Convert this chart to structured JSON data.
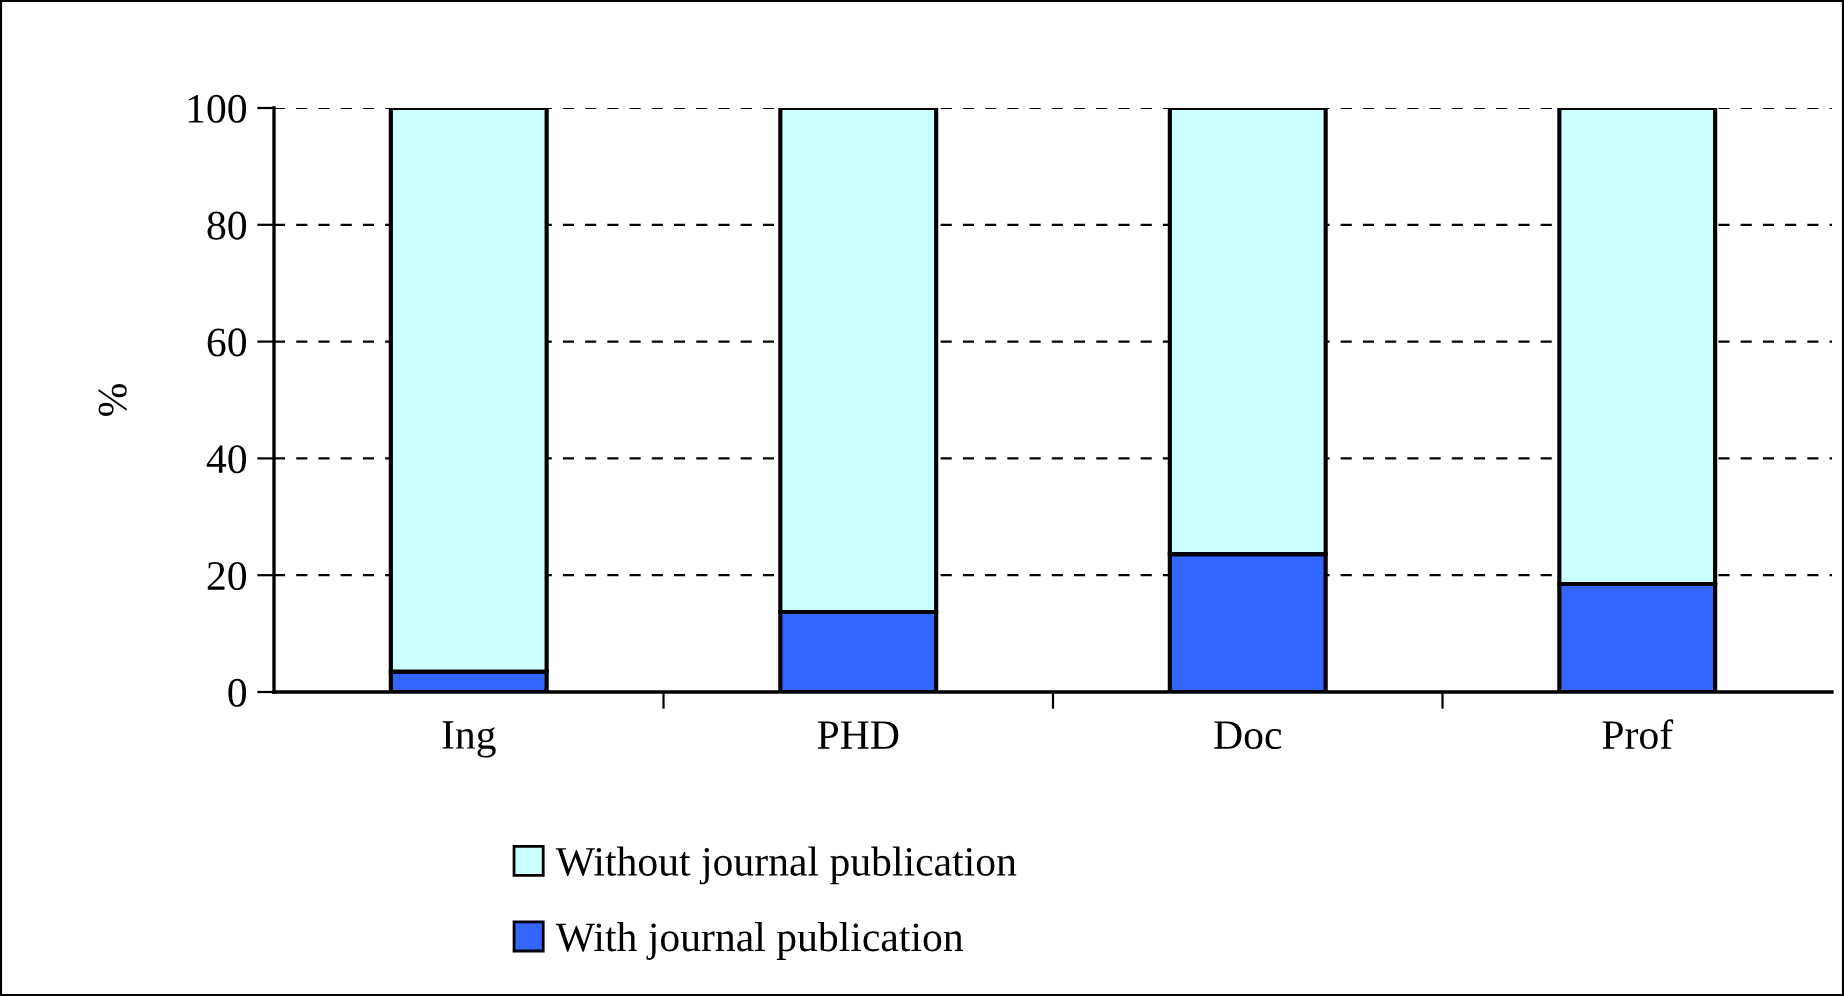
{
  "chart_data": {
    "type": "bar",
    "stacked": true,
    "ylabel": "%",
    "categories": [
      "Ing",
      "PHD",
      "Doc",
      "Prof"
    ],
    "series": [
      {
        "name": "With journal publication",
        "color": "#3366ff",
        "values": [
          3.5,
          13.7,
          23.6,
          18.5
        ]
      },
      {
        "name": "Without journal publication",
        "color": "#ccffff",
        "values": [
          96.5,
          86.3,
          76.4,
          81.5
        ]
      }
    ],
    "ylim": [
      0,
      100
    ],
    "yticks": [
      0,
      20,
      40,
      60,
      80,
      100
    ],
    "grid": "y",
    "legend": "bottom"
  }
}
